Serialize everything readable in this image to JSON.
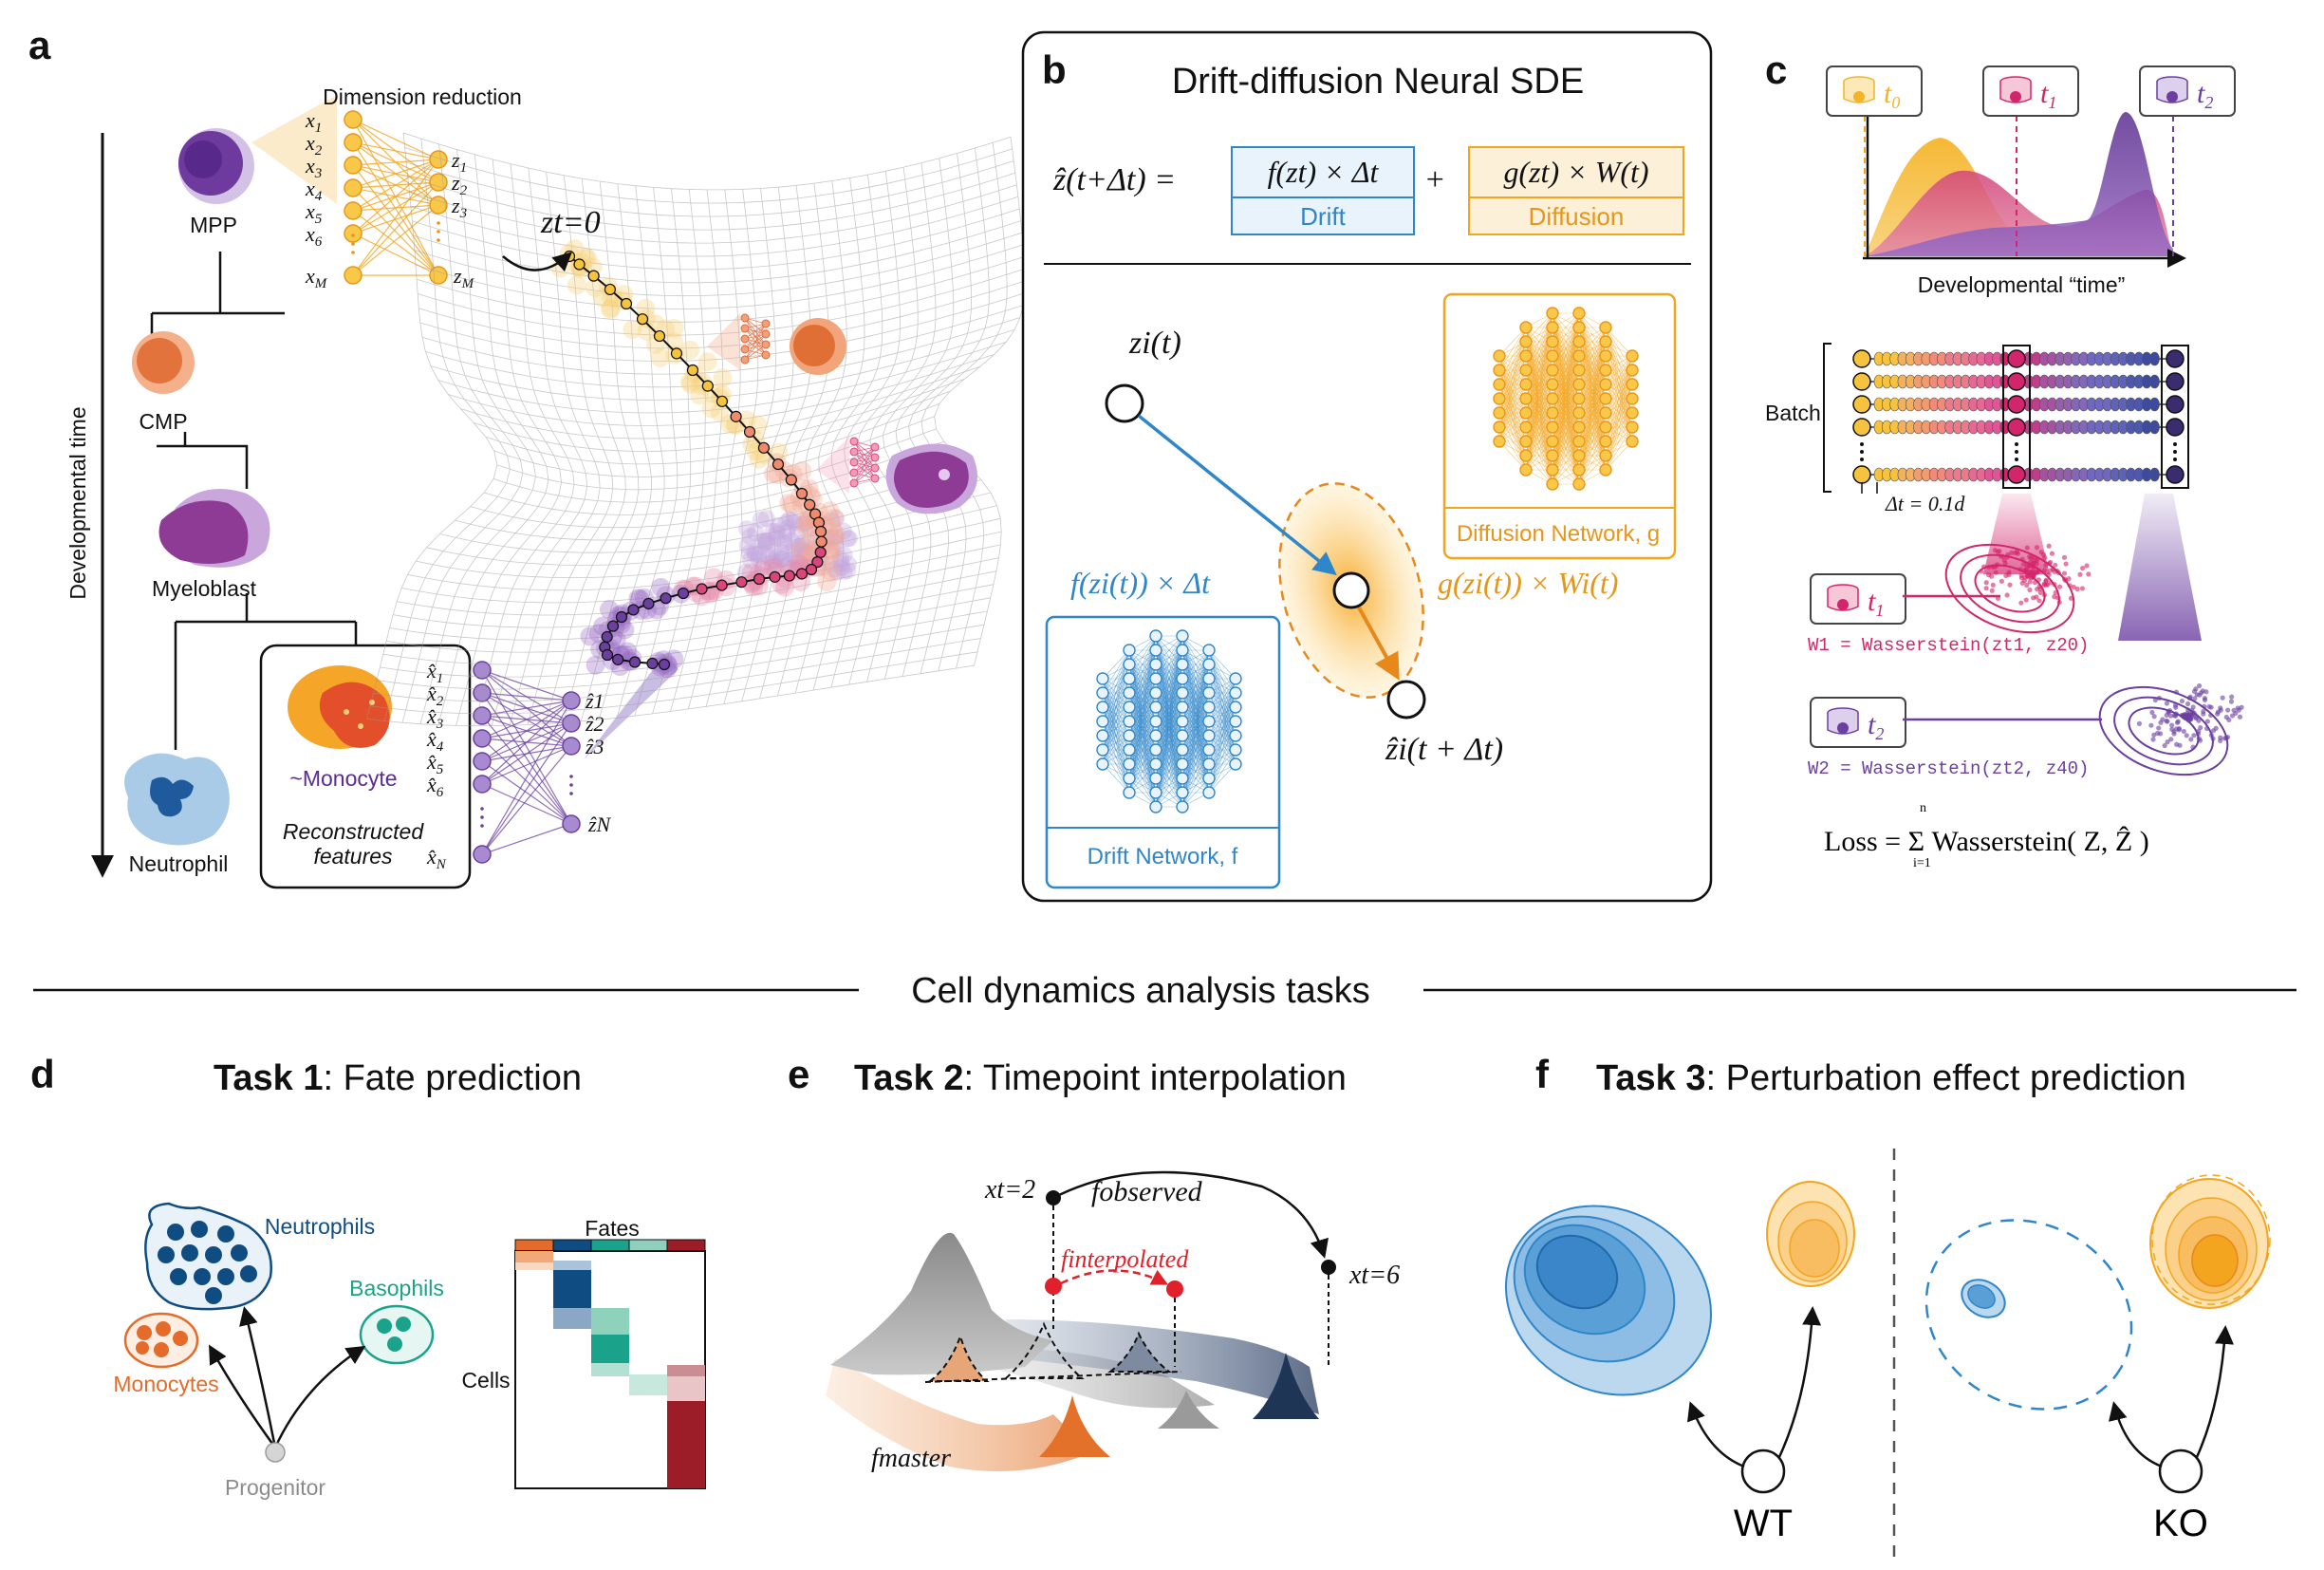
{
  "colors": {
    "blue": "#2f86c9",
    "orange": "#f3a51f",
    "purple": "#6b3fa0",
    "magenta": "#d3256b",
    "neutrophil": "#0f4c81",
    "monocyte": "#e46b2a",
    "basophil": "#1aa38a",
    "gray": "#8c8c8c",
    "navy": "#1d2d4a"
  },
  "panel_a": {
    "label": "a",
    "axis_label": "Developmental time",
    "dimred_title": "Dimension reduction",
    "cells": {
      "mpp": "MPP",
      "cmp": "CMP",
      "myeloblast": "Myeloblast",
      "neutrophil": "Neutrophil",
      "monocyte": "~Monocyte"
    },
    "recon_caption_1": "Reconstructed",
    "recon_caption_2": "features",
    "x_inputs": [
      "x1",
      "x2",
      "x3",
      "x4",
      "x5",
      "x6"
    ],
    "x_last": "xM",
    "z_nodes": [
      "z1",
      "z2",
      "z3"
    ],
    "z_last": "zM",
    "xhat_inputs": [
      "x̂1",
      "x̂2",
      "x̂3",
      "x̂4",
      "x̂5",
      "x̂6"
    ],
    "xhat_last": "x̂N",
    "zhat_nodes": [
      "ẑ1",
      "ẑ2",
      "ẑ3"
    ],
    "zhat_last": "ẑN",
    "z_start": "zt=0",
    "icons": [
      "mpp-cell-icon",
      "cmp-cell-icon",
      "myeloblast-cell-icon",
      "neutrophil-cell-icon",
      "monocyte-cell-icon"
    ]
  },
  "panel_b": {
    "label": "b",
    "title": "Drift-diffusion Neural SDE",
    "eq_lhs": "ẑ(t+Δt) =",
    "eq_drift": "f(zt) × Δt",
    "eq_plus": "+",
    "eq_diffusion": "g(zt) × W(t)",
    "drift_tag": "Drift",
    "diffusion_tag": "Diffusion",
    "zi_label": "zi(t)",
    "drift_term": "f(zi(t)) × Δt",
    "diffusion_term": "g(zi(t)) × Wi(t)",
    "zhat_next": "ẑi(t + Δt)",
    "drift_net": "Drift Network, f",
    "diffusion_net": "Diffusion Network, g"
  },
  "panel_c": {
    "label": "c",
    "timepoints": [
      "t0",
      "t1",
      "t2"
    ],
    "xlabel": "Developmental “time”",
    "batch_label": "Batch",
    "dt_label": "Δt = 0.1d",
    "w1": "W1 = Wasserstein(zt1, z20)",
    "w2": "W2 = Wasserstein(zt2, z40)",
    "loss": "Loss = Σ Wasserstein( Z, Ẑ )",
    "loss_sum_top": "n",
    "loss_sum_bottom": "i=1"
  },
  "divider": {
    "title": "Cell dynamics analysis tasks"
  },
  "panel_d": {
    "label": "d",
    "task_bold": "Task 1",
    "task_rest": ": Fate prediction",
    "neutrophils": "Neutrophils",
    "basophils": "Basophils",
    "monocytes": "Monocytes",
    "progenitor": "Progenitor",
    "fates": "Fates",
    "cells": "Cells"
  },
  "panel_e": {
    "label": "e",
    "task_bold": "Task 2",
    "task_rest": ": Timepoint interpolation",
    "x_t2": "xt=2",
    "x_t6": "xt=6",
    "f_observed": "fobserved",
    "f_interpolated": "finterpolated",
    "f_master": "fmaster"
  },
  "panel_f": {
    "label": "f",
    "task_bold": "Task 3",
    "task_rest": ": Perturbation effect prediction",
    "wt": "WT",
    "ko": "KO"
  }
}
